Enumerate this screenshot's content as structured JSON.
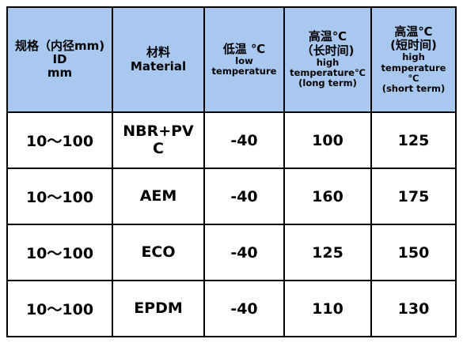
{
  "table": {
    "headers": [
      {
        "lines": [
          "规格（内径mm)",
          "ID",
          "mm"
        ],
        "sizes": [
          "big",
          "big",
          "big"
        ]
      },
      {
        "lines": [
          "材料",
          "Material"
        ],
        "sizes": [
          "big",
          "big"
        ]
      },
      {
        "lines": [
          "低温 ℃",
          "low",
          "temperature"
        ],
        "sizes": [
          "big",
          "small",
          "small"
        ]
      },
      {
        "lines": [
          "高温℃",
          "（长时间)",
          "high",
          "temperature℃",
          "(long term)"
        ],
        "sizes": [
          "big",
          "big",
          "small",
          "small",
          "small"
        ]
      },
      {
        "lines": [
          "高温℃",
          "(短时间)",
          "high",
          "temperature",
          "℃",
          "(short term)"
        ],
        "sizes": [
          "big",
          "big",
          "small",
          "small",
          "small",
          "small"
        ]
      }
    ],
    "rows": [
      {
        "id": "10～100",
        "material": "NBR+PVC",
        "low": "-40",
        "high_long": "100",
        "high_short": "125"
      },
      {
        "id": "10～100",
        "material": "AEM",
        "low": "-40",
        "high_long": "160",
        "high_short": "175"
      },
      {
        "id": "10～100",
        "material": "ECO",
        "low": "-40",
        "high_long": "125",
        "high_short": "150"
      },
      {
        "id": "10～100",
        "material": "EPDM",
        "low": "-40",
        "high_long": "110",
        "high_short": "130"
      }
    ]
  }
}
